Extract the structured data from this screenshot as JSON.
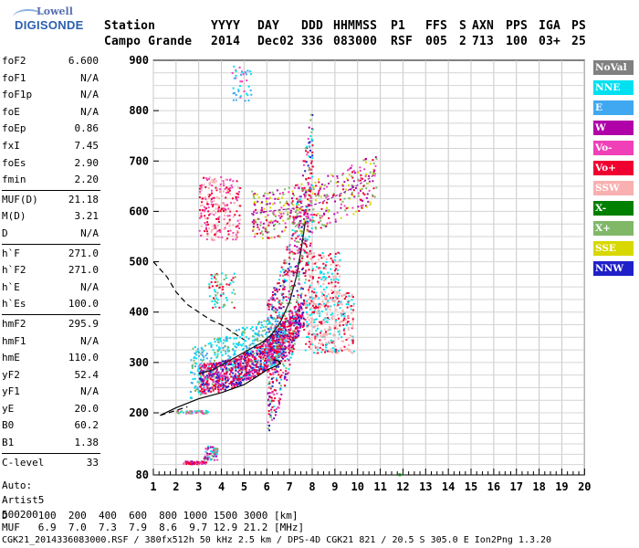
{
  "logo": {
    "line1": "Lowell",
    "line2": "DIGISONDE"
  },
  "header": {
    "row1": [
      "Station",
      "YYYY",
      "DAY",
      "DDD",
      "HHMMSS",
      "P1",
      "FFS",
      "S",
      "AXN",
      "PPS",
      "IGA",
      "PS"
    ],
    "row2": [
      "Campo Grande",
      "2014",
      "Dec02",
      "336",
      "083000",
      "RSF",
      "005",
      "2",
      "713",
      "100",
      "03+",
      "25"
    ]
  },
  "parameters": [
    {
      "label": "foF2",
      "value": "6.600"
    },
    {
      "label": "foF1",
      "value": "N/A"
    },
    {
      "label": "foF1p",
      "value": "N/A"
    },
    {
      "label": "foE",
      "value": "N/A"
    },
    {
      "label": "foEp",
      "value": "0.86"
    },
    {
      "label": "fxI",
      "value": "7.45"
    },
    {
      "label": "foEs",
      "value": "2.90"
    },
    {
      "label": "fmin",
      "value": "2.20"
    },
    {
      "label": "MUF(D)",
      "value": "21.18"
    },
    {
      "label": "M(D)",
      "value": "3.21"
    },
    {
      "label": "D",
      "value": "N/A"
    },
    {
      "label": "h`F",
      "value": "271.0"
    },
    {
      "label": "h`F2",
      "value": "271.0"
    },
    {
      "label": "h`E",
      "value": "N/A"
    },
    {
      "label": "h`Es",
      "value": "100.0"
    },
    {
      "label": "hmF2",
      "value": "295.9"
    },
    {
      "label": "hmF1",
      "value": "N/A"
    },
    {
      "label": "hmE",
      "value": "110.0"
    },
    {
      "label": "yF2",
      "value": "52.4"
    },
    {
      "label": "yF1",
      "value": "N/A"
    },
    {
      "label": "yE",
      "value": "20.0"
    },
    {
      "label": "B0",
      "value": "60.2"
    },
    {
      "label": "B1",
      "value": "1.38"
    },
    {
      "label": "C-level",
      "value": "33"
    }
  ],
  "auto_block": {
    "line1": "Auto:",
    "line2": "Artist5",
    "line3": "500200"
  },
  "legend": [
    {
      "label": "NoVal",
      "color": "#808080"
    },
    {
      "label": "NNE",
      "color": "#00e0f0"
    },
    {
      "label": "E",
      "color": "#40a8f0"
    },
    {
      "label": "W",
      "color": "#b000a8"
    },
    {
      "label": "Vo-",
      "color": "#f040b8"
    },
    {
      "label": "Vo+",
      "color": "#f00030"
    },
    {
      "label": "SSW",
      "color": "#f8b0b0"
    },
    {
      "label": "X-",
      "color": "#008000"
    },
    {
      "label": "X+",
      "color": "#80b868"
    },
    {
      "label": "SSE",
      "color": "#d8d800"
    },
    {
      "label": "NNW",
      "color": "#2020c8"
    }
  ],
  "bottom": {
    "row_d": "D     100  200  400  600  800 1000 1500 3000 [km]",
    "row_muf": "MUF   6.9  7.0  7.3  7.9  8.6  9.7 12.9 21.2 [MHz]",
    "footer": "CGK21_2014336083000.RSF / 380fx512h 50 kHz 2.5 km / DPS-4D CGK21 821 / 20.5 S 305.0 E Ion2Png 1.3.20"
  },
  "chart_data": {
    "type": "scatter",
    "x_ticks": [
      "1",
      "2",
      "3",
      "4",
      "5",
      "6",
      "7",
      "8",
      "9",
      "10",
      "11",
      "12",
      "13",
      "14",
      "15",
      "16",
      "17",
      "18",
      "19",
      "20"
    ],
    "y_ticks": [
      "80",
      "200",
      "300",
      "400",
      "500",
      "600",
      "700",
      "800",
      "900"
    ],
    "xlim": [
      1,
      20
    ],
    "ylim": [
      80,
      900
    ],
    "y_axis_scale": "piecewise: 80-200 and 200-900 (100 km per major division)",
    "grid": true,
    "legend_position": "right",
    "bright_regions": [
      {
        "name": "Es",
        "x": [
          2.3,
          3.3
        ],
        "y": [
          103,
          107
        ],
        "color": "#b000a8"
      },
      {
        "name": "Es-upper",
        "x": [
          3.2,
          3.8
        ],
        "y": [
          110,
          135
        ],
        "color": "#b000a8"
      },
      {
        "name": "F-trace",
        "x": [
          3.0,
          8.0
        ],
        "y": [
          270,
          600
        ],
        "color": "#f00030"
      },
      {
        "name": "F-spread",
        "x": [
          3.0,
          8.6
        ],
        "y": [
          280,
          420
        ],
        "color": "#00e0f0"
      },
      {
        "name": "X-trace",
        "x": [
          6.5,
          10.8
        ],
        "y": [
          300,
          720
        ],
        "color": "#f8b0b0"
      },
      {
        "name": "multi-hop",
        "x": [
          3.0,
          4.8
        ],
        "y": [
          540,
          680
        ],
        "color": "#f00030"
      }
    ],
    "profile_curve": [
      [
        1.3,
        195
      ],
      [
        2,
        210
      ],
      [
        3,
        228
      ],
      [
        4,
        240
      ],
      [
        5,
        256
      ],
      [
        5.5,
        270
      ],
      [
        6,
        285
      ],
      [
        6.4,
        293
      ],
      [
        6.6,
        298
      ],
      [
        6.5,
        303
      ],
      [
        6.3,
        306
      ]
    ],
    "dashed_extrapolation": [
      [
        1.0,
        500
      ],
      [
        1.6,
        470
      ],
      [
        2.0,
        440
      ],
      [
        2.5,
        415
      ],
      [
        3.0,
        400
      ],
      [
        3.5,
        385
      ],
      [
        4.0,
        375
      ],
      [
        4.5,
        360
      ],
      [
        5.0,
        345
      ]
    ],
    "trace_line": [
      [
        3.0,
        278
      ],
      [
        3.6,
        285
      ],
      [
        4.2,
        300
      ],
      [
        4.8,
        315
      ],
      [
        5.4,
        330
      ],
      [
        5.8,
        340
      ],
      [
        6.2,
        355
      ],
      [
        6.6,
        380
      ],
      [
        7.0,
        420
      ],
      [
        7.3,
        470
      ],
      [
        7.5,
        520
      ],
      [
        7.7,
        580
      ]
    ],
    "second_hop": [
      [
        5.3,
        595
      ],
      [
        6.0,
        600
      ],
      [
        7.0,
        605
      ],
      [
        8.0,
        612
      ],
      [
        8.5,
        620
      ],
      [
        9.0,
        630
      ],
      [
        9.5,
        640
      ],
      [
        10.0,
        652
      ],
      [
        10.5,
        665
      ],
      [
        10.8,
        675
      ]
    ]
  }
}
